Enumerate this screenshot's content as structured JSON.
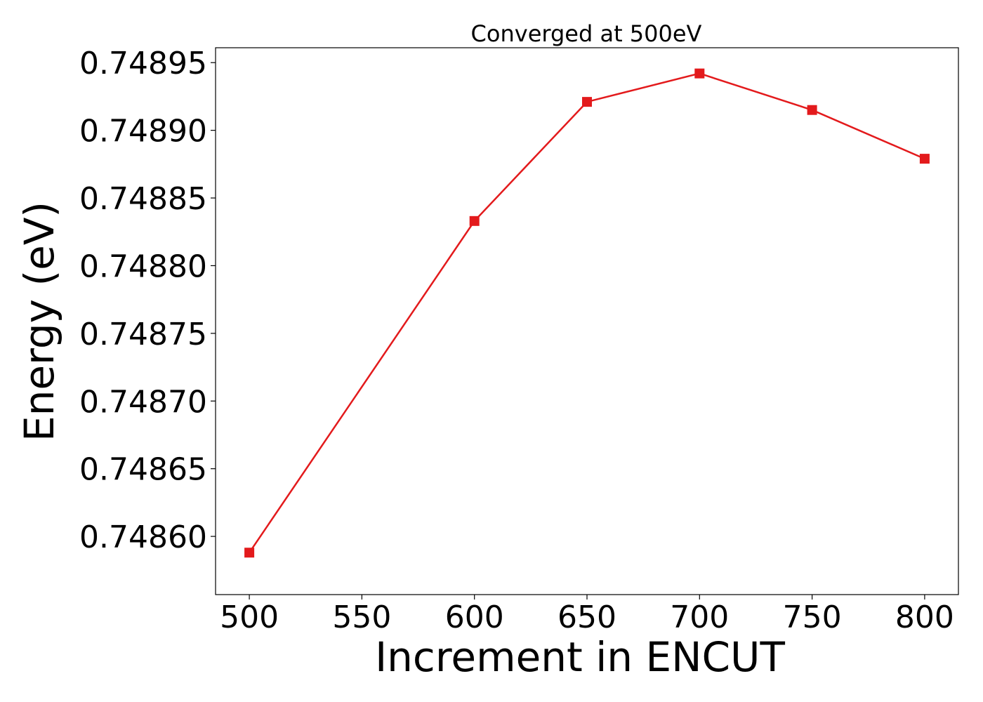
{
  "chart_data": {
    "type": "line",
    "title": "Converged at 500eV",
    "xlabel": "Increment in ENCUT",
    "ylabel": "Energy (eV)",
    "x": [
      500,
      600,
      650,
      700,
      750,
      800
    ],
    "series": [
      {
        "values": [
          0.748588,
          0.748833,
          0.748921,
          0.748942,
          0.748915,
          0.748879
        ],
        "color": "#e31a1c",
        "marker": "square"
      }
    ],
    "xlim": [
      485,
      815
    ],
    "ylim": [
      0.748557,
      0.748961
    ],
    "xticks": [
      "500",
      "550",
      "600",
      "650",
      "700",
      "750",
      "800"
    ],
    "yticks": [
      "0.74860",
      "0.74865",
      "0.74870",
      "0.74875",
      "0.74880",
      "0.74885",
      "0.74890",
      "0.74895"
    ],
    "grid": false,
    "legend": "none"
  }
}
